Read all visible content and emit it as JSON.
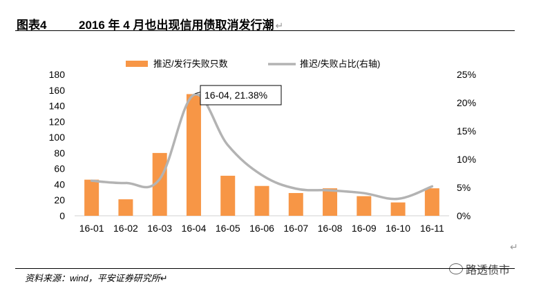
{
  "header": {
    "figure_number": "图表4",
    "title": "2016 年 4 月也出现信用债取消发行潮",
    "return_mark": "↵"
  },
  "source": "资料来源：wind，平安证券研究所↵",
  "watermark": "路透债市",
  "side_mark": "↵",
  "chart_data": {
    "type": "bar",
    "categories": [
      "16-01",
      "16-02",
      "16-03",
      "16-04",
      "16-05",
      "16-06",
      "16-07",
      "16-08",
      "16-09",
      "16-10",
      "16-11"
    ],
    "series": [
      {
        "name": "推迟/发行失败只数",
        "type": "bar",
        "axis": "left",
        "color": "#F79646",
        "values": [
          46,
          21,
          80,
          155,
          51,
          38,
          29,
          35,
          25,
          17,
          35
        ]
      },
      {
        "name": "推迟/失败占比(右轴)",
        "type": "line",
        "axis": "right",
        "color": "#B3B3B3",
        "values": [
          6.2,
          5.8,
          6.5,
          21.38,
          12.5,
          7.2,
          4.8,
          4.5,
          4.0,
          3.0,
          5.2
        ]
      }
    ],
    "y_left": {
      "min": 0,
      "max": 180,
      "ticks": [
        0,
        20,
        40,
        60,
        80,
        100,
        120,
        140,
        160,
        180
      ]
    },
    "y_right": {
      "min": 0,
      "max": 25,
      "ticks": [
        "0%",
        "5%",
        "10%",
        "15%",
        "20%",
        "25%"
      ]
    },
    "annotation": {
      "category": "16-04",
      "text": "16-04, 21.38%"
    },
    "legend_position": "top"
  }
}
